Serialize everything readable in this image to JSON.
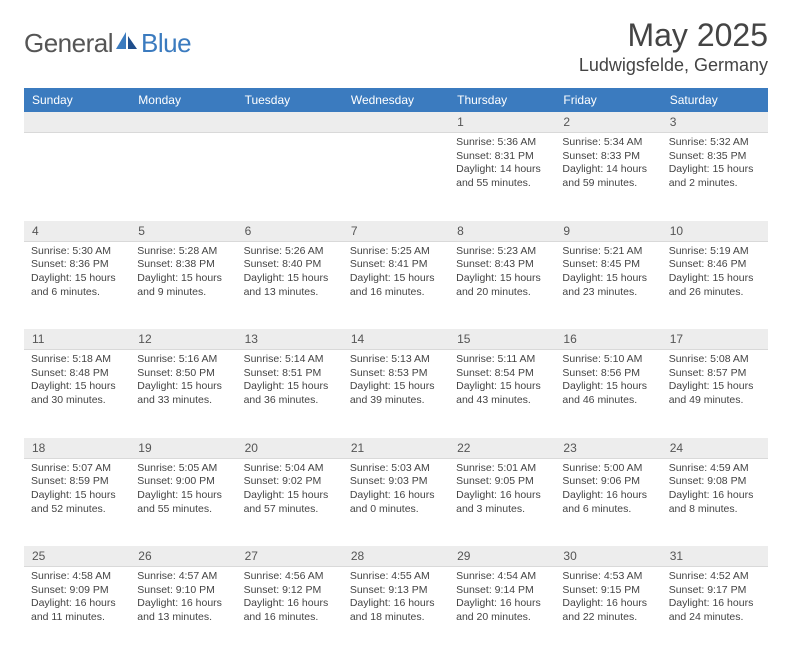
{
  "brand": {
    "text1": "General",
    "text2": "Blue",
    "color1": "#555555",
    "color2": "#3b7bbf"
  },
  "title": "May 2025",
  "location": "Ludwigsfelde, Germany",
  "headerColor": "#3b7bbf",
  "dayHeaders": [
    "Sunday",
    "Monday",
    "Tuesday",
    "Wednesday",
    "Thursday",
    "Friday",
    "Saturday"
  ],
  "weeks": [
    [
      null,
      null,
      null,
      null,
      {
        "n": "1",
        "sr": "5:36 AM",
        "ss": "8:31 PM",
        "dl": "14 hours and 55 minutes."
      },
      {
        "n": "2",
        "sr": "5:34 AM",
        "ss": "8:33 PM",
        "dl": "14 hours and 59 minutes."
      },
      {
        "n": "3",
        "sr": "5:32 AM",
        "ss": "8:35 PM",
        "dl": "15 hours and 2 minutes."
      }
    ],
    [
      {
        "n": "4",
        "sr": "5:30 AM",
        "ss": "8:36 PM",
        "dl": "15 hours and 6 minutes."
      },
      {
        "n": "5",
        "sr": "5:28 AM",
        "ss": "8:38 PM",
        "dl": "15 hours and 9 minutes."
      },
      {
        "n": "6",
        "sr": "5:26 AM",
        "ss": "8:40 PM",
        "dl": "15 hours and 13 minutes."
      },
      {
        "n": "7",
        "sr": "5:25 AM",
        "ss": "8:41 PM",
        "dl": "15 hours and 16 minutes."
      },
      {
        "n": "8",
        "sr": "5:23 AM",
        "ss": "8:43 PM",
        "dl": "15 hours and 20 minutes."
      },
      {
        "n": "9",
        "sr": "5:21 AM",
        "ss": "8:45 PM",
        "dl": "15 hours and 23 minutes."
      },
      {
        "n": "10",
        "sr": "5:19 AM",
        "ss": "8:46 PM",
        "dl": "15 hours and 26 minutes."
      }
    ],
    [
      {
        "n": "11",
        "sr": "5:18 AM",
        "ss": "8:48 PM",
        "dl": "15 hours and 30 minutes."
      },
      {
        "n": "12",
        "sr": "5:16 AM",
        "ss": "8:50 PM",
        "dl": "15 hours and 33 minutes."
      },
      {
        "n": "13",
        "sr": "5:14 AM",
        "ss": "8:51 PM",
        "dl": "15 hours and 36 minutes."
      },
      {
        "n": "14",
        "sr": "5:13 AM",
        "ss": "8:53 PM",
        "dl": "15 hours and 39 minutes."
      },
      {
        "n": "15",
        "sr": "5:11 AM",
        "ss": "8:54 PM",
        "dl": "15 hours and 43 minutes."
      },
      {
        "n": "16",
        "sr": "5:10 AM",
        "ss": "8:56 PM",
        "dl": "15 hours and 46 minutes."
      },
      {
        "n": "17",
        "sr": "5:08 AM",
        "ss": "8:57 PM",
        "dl": "15 hours and 49 minutes."
      }
    ],
    [
      {
        "n": "18",
        "sr": "5:07 AM",
        "ss": "8:59 PM",
        "dl": "15 hours and 52 minutes."
      },
      {
        "n": "19",
        "sr": "5:05 AM",
        "ss": "9:00 PM",
        "dl": "15 hours and 55 minutes."
      },
      {
        "n": "20",
        "sr": "5:04 AM",
        "ss": "9:02 PM",
        "dl": "15 hours and 57 minutes."
      },
      {
        "n": "21",
        "sr": "5:03 AM",
        "ss": "9:03 PM",
        "dl": "16 hours and 0 minutes."
      },
      {
        "n": "22",
        "sr": "5:01 AM",
        "ss": "9:05 PM",
        "dl": "16 hours and 3 minutes."
      },
      {
        "n": "23",
        "sr": "5:00 AM",
        "ss": "9:06 PM",
        "dl": "16 hours and 6 minutes."
      },
      {
        "n": "24",
        "sr": "4:59 AM",
        "ss": "9:08 PM",
        "dl": "16 hours and 8 minutes."
      }
    ],
    [
      {
        "n": "25",
        "sr": "4:58 AM",
        "ss": "9:09 PM",
        "dl": "16 hours and 11 minutes."
      },
      {
        "n": "26",
        "sr": "4:57 AM",
        "ss": "9:10 PM",
        "dl": "16 hours and 13 minutes."
      },
      {
        "n": "27",
        "sr": "4:56 AM",
        "ss": "9:12 PM",
        "dl": "16 hours and 16 minutes."
      },
      {
        "n": "28",
        "sr": "4:55 AM",
        "ss": "9:13 PM",
        "dl": "16 hours and 18 minutes."
      },
      {
        "n": "29",
        "sr": "4:54 AM",
        "ss": "9:14 PM",
        "dl": "16 hours and 20 minutes."
      },
      {
        "n": "30",
        "sr": "4:53 AM",
        "ss": "9:15 PM",
        "dl": "16 hours and 22 minutes."
      },
      {
        "n": "31",
        "sr": "4:52 AM",
        "ss": "9:17 PM",
        "dl": "16 hours and 24 minutes."
      }
    ]
  ],
  "labels": {
    "sunrise": "Sunrise:",
    "sunset": "Sunset:",
    "daylight": "Daylight:"
  }
}
